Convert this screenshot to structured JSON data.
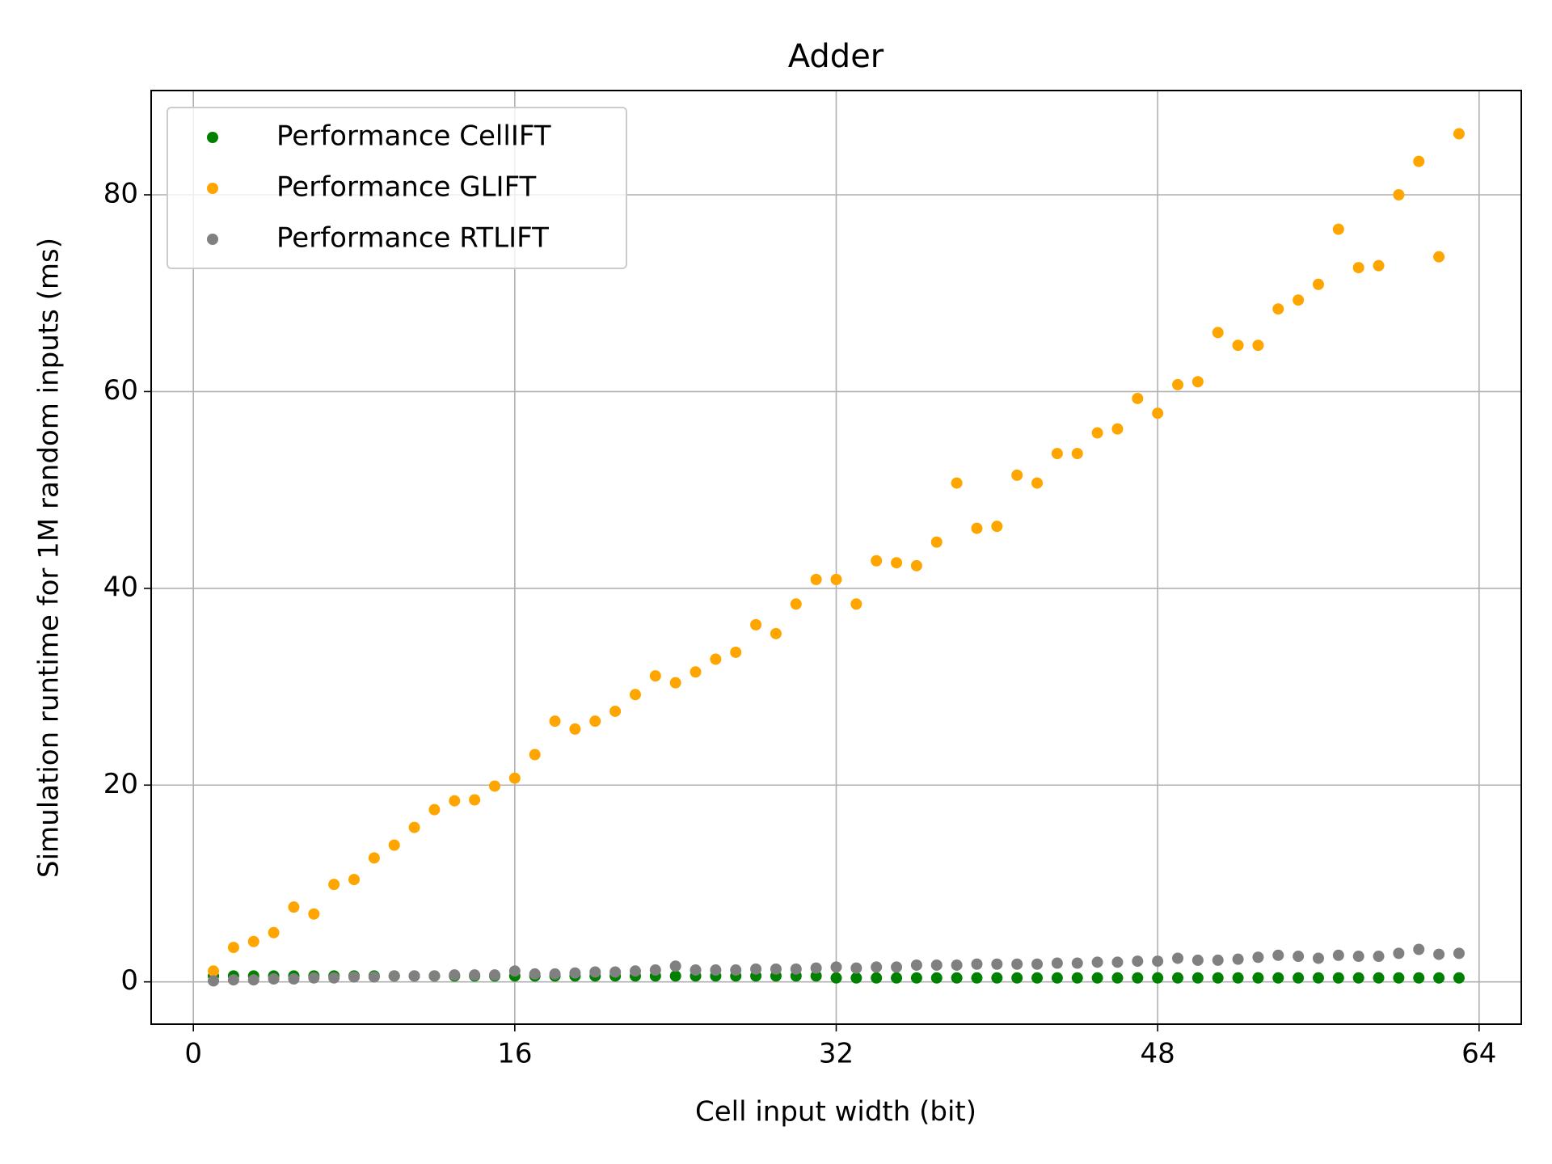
{
  "chart_data": {
    "type": "scatter",
    "title": "Adder",
    "x_label": "Cell input width (bit)",
    "y_label": "Simulation runtime for 1M random inputs (ms)",
    "x": [
      1,
      2,
      3,
      4,
      5,
      6,
      7,
      8,
      9,
      10,
      11,
      12,
      13,
      14,
      15,
      16,
      17,
      18,
      19,
      20,
      21,
      22,
      23,
      24,
      25,
      26,
      27,
      28,
      29,
      30,
      31,
      32,
      33,
      34,
      35,
      36,
      37,
      38,
      39,
      40,
      41,
      42,
      43,
      44,
      45,
      46,
      47,
      48,
      49,
      50,
      51,
      52,
      53,
      54,
      55,
      56,
      57,
      58,
      59,
      60,
      61,
      62,
      63
    ],
    "series": [
      {
        "name": "Performance CellIFT",
        "color": "green",
        "values": [
          0.6,
          0.6,
          0.6,
          0.6,
          0.6,
          0.6,
          0.6,
          0.6,
          0.6,
          0.6,
          0.6,
          0.6,
          0.6,
          0.6,
          0.6,
          0.6,
          0.6,
          0.6,
          0.6,
          0.6,
          0.6,
          0.6,
          0.6,
          0.6,
          0.6,
          0.6,
          0.6,
          0.6,
          0.6,
          0.6,
          0.6,
          0.4,
          0.4,
          0.4,
          0.4,
          0.4,
          0.4,
          0.4,
          0.4,
          0.4,
          0.4,
          0.4,
          0.4,
          0.4,
          0.4,
          0.4,
          0.4,
          0.4,
          0.4,
          0.4,
          0.4,
          0.4,
          0.4,
          0.4,
          0.4,
          0.4,
          0.4,
          0.4,
          0.4,
          0.4,
          0.4,
          0.4,
          0.4
        ]
      },
      {
        "name": "Performance GLIFT",
        "color": "orange",
        "values": [
          1.1,
          3.5,
          4.1,
          5.0,
          7.6,
          6.9,
          9.9,
          10.4,
          12.6,
          13.9,
          15.7,
          17.5,
          18.4,
          18.5,
          19.9,
          20.7,
          23.1,
          26.5,
          25.7,
          26.5,
          27.5,
          29.2,
          31.1,
          30.4,
          31.5,
          32.8,
          33.5,
          36.3,
          35.4,
          38.4,
          40.9,
          40.9,
          38.4,
          42.8,
          42.6,
          42.3,
          44.7,
          50.7,
          46.1,
          46.3,
          51.5,
          50.7,
          53.7,
          53.7,
          55.8,
          56.2,
          59.3,
          57.8,
          60.7,
          61.0,
          66.0,
          64.7,
          64.7,
          68.4,
          69.3,
          70.9,
          76.5,
          72.6,
          72.8,
          80.0,
          83.4,
          73.7,
          86.2
        ]
      },
      {
        "name": "Performance RTLIFT",
        "color": "gray",
        "values": [
          0.1,
          0.2,
          0.2,
          0.3,
          0.3,
          0.4,
          0.4,
          0.5,
          0.5,
          0.6,
          0.6,
          0.6,
          0.7,
          0.7,
          0.7,
          1.1,
          0.8,
          0.8,
          0.9,
          1.0,
          1.0,
          1.1,
          1.2,
          1.6,
          1.2,
          1.2,
          1.2,
          1.3,
          1.3,
          1.3,
          1.4,
          1.5,
          1.4,
          1.5,
          1.5,
          1.7,
          1.7,
          1.7,
          1.8,
          1.8,
          1.8,
          1.8,
          1.9,
          1.9,
          2.0,
          2.0,
          2.1,
          2.1,
          2.4,
          2.2,
          2.2,
          2.3,
          2.5,
          2.7,
          2.6,
          2.4,
          2.7,
          2.6,
          2.6,
          2.9,
          3.3,
          2.8,
          2.9
        ]
      }
    ],
    "xlim": [
      -2.1,
      66.1
    ],
    "ylim": [
      -4.3,
      90.6
    ],
    "xticks": [
      0,
      16,
      32,
      48,
      64
    ],
    "yticks": [
      0,
      20,
      40,
      60,
      80
    ],
    "grid": true,
    "legend": "upper left"
  }
}
